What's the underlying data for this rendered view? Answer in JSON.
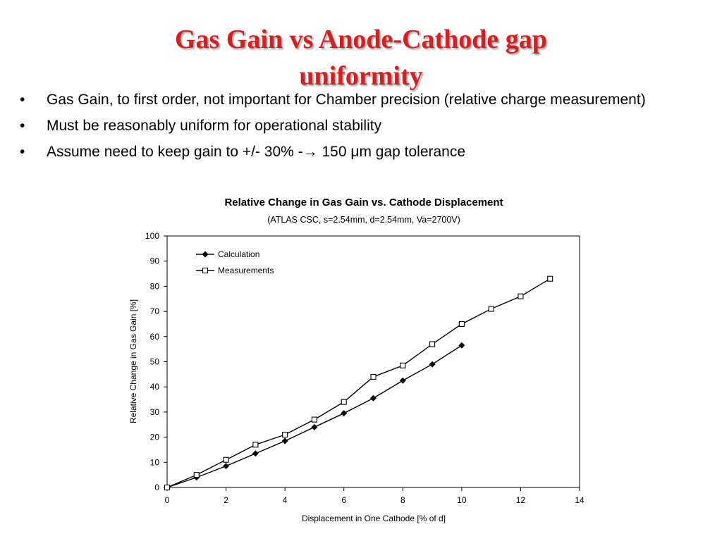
{
  "slide": {
    "title_line1": "Gas Gain vs Anode-Cathode gap",
    "title_line2": "uniformity",
    "bullets": [
      "Gas Gain, to first order, not important for Chamber precision (relative charge measurement)",
      "Must be reasonably uniform for operational stability",
      "Assume need to keep gain to +/- 30%  -→  150 μm gap tolerance"
    ],
    "bullet_glyph": "•"
  },
  "chart_data": {
    "type": "line",
    "title": "Relative Change in Gas Gain vs. Cathode Displacement",
    "subtitle": "(ATLAS CSC, s=2.54mm, d=2.54mm, Va=2700V)",
    "xlabel": "Displacement in One Cathode [% of d]",
    "ylabel": "Relative Change in Gas Gain  [%]",
    "xlim": [
      0,
      14
    ],
    "ylim": [
      0,
      100
    ],
    "xticks": [
      0,
      2,
      4,
      6,
      8,
      10,
      12,
      14
    ],
    "yticks": [
      0,
      10,
      20,
      30,
      40,
      50,
      60,
      70,
      80,
      90,
      100
    ],
    "grid": false,
    "legend_position": "top-left",
    "series": [
      {
        "name": "Calculation",
        "marker": "filled-diamond",
        "x": [
          0,
          1,
          2,
          3,
          4,
          5,
          6,
          7,
          8,
          9,
          10
        ],
        "y": [
          0,
          4,
          8.5,
          13.5,
          18.5,
          24,
          29.5,
          35.5,
          42.5,
          49,
          56.5
        ]
      },
      {
        "name": "Measurements",
        "marker": "open-square",
        "x": [
          0,
          1,
          2,
          3,
          4,
          5,
          6,
          7,
          8,
          9,
          10,
          11,
          12,
          13
        ],
        "y": [
          0,
          5,
          11,
          17,
          21,
          27,
          34,
          44,
          48.5,
          57,
          65,
          71,
          76,
          83
        ]
      }
    ]
  }
}
